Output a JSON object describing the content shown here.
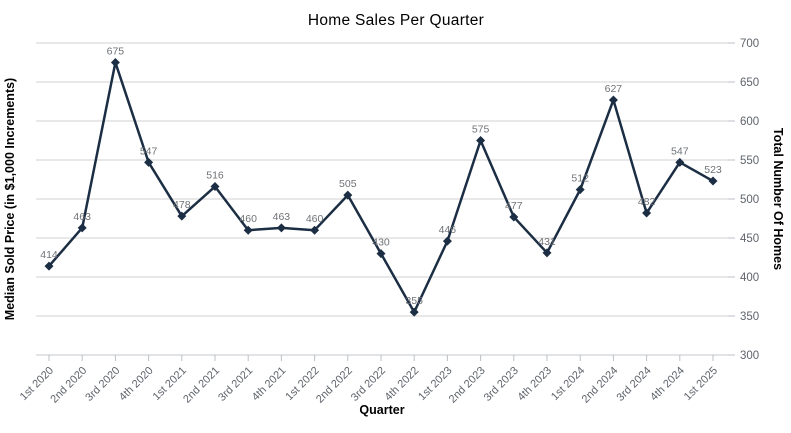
{
  "chart_data": {
    "type": "line",
    "title": "Home Sales Per Quarter",
    "xlabel": "Quarter",
    "ylabel_left": "Median Sold Price (in $1,000 Increments)",
    "ylabel_right": "Total Number Of Homes",
    "categories": [
      "1st 2020",
      "2nd 2020",
      "3rd 2020",
      "4th 2020",
      "1st 2021",
      "2nd 2021",
      "3rd 2021",
      "4th 2021",
      "1st 2022",
      "2nd 2022",
      "3rd 2022",
      "4th 2022",
      "1st 2023",
      "2nd 2023",
      "3rd 2023",
      "4th 2023",
      "1st 2024",
      "2nd 2024",
      "3rd 2024",
      "4th 2024",
      "1st 2025"
    ],
    "values": [
      414,
      463,
      675,
      547,
      478,
      516,
      460,
      463,
      460,
      505,
      430,
      355,
      446,
      575,
      477,
      431,
      512,
      627,
      482,
      547,
      523
    ],
    "point_labels": [
      "414",
      "463",
      "675",
      "547",
      "478",
      "516",
      "460",
      "463",
      "460",
      "505",
      "430",
      "355",
      "446",
      "575",
      "477",
      "431",
      "512",
      "627",
      "482",
      "547",
      "523"
    ],
    "y_ticks": [
      300,
      350,
      400,
      450,
      500,
      550,
      600,
      650,
      700
    ],
    "ylim": [
      300,
      700
    ],
    "grid": "horizontal",
    "legend": "none",
    "marker": "diamond",
    "colors": {
      "line": "#1c2e44",
      "marker": "#1c2e44",
      "grid": "#d2d2d2",
      "axis_line": "#c4c7cc",
      "tick_mark": "#bcbfc4",
      "title": "#2b4a68",
      "axis_title": "#4478ae",
      "tick_label": "#5f646b",
      "point_label": "#6f7377",
      "background": "#ffffff"
    }
  }
}
